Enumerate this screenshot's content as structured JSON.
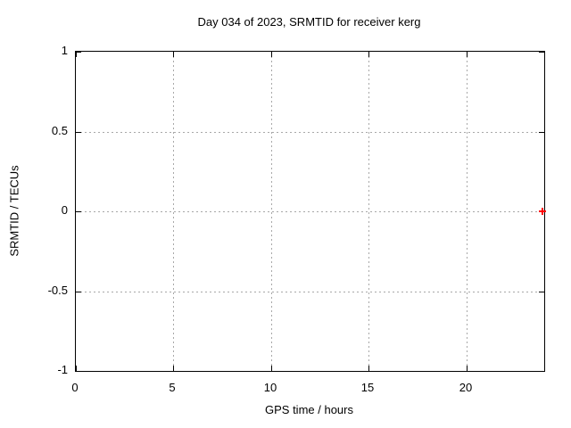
{
  "chart_data": {
    "type": "scatter",
    "title": "Day 034 of 2023, SRMTID for receiver kerg",
    "xlabel": "GPS time / hours",
    "ylabel": "SRMTID / TECUs",
    "xlim": [
      0,
      24
    ],
    "ylim": [
      -1,
      1
    ],
    "xticks": [
      {
        "value": 0,
        "label": "0"
      },
      {
        "value": 5,
        "label": "5"
      },
      {
        "value": 10,
        "label": "10"
      },
      {
        "value": 15,
        "label": "15"
      },
      {
        "value": 20,
        "label": "20"
      }
    ],
    "yticks": [
      {
        "value": -1,
        "label": "-1"
      },
      {
        "value": -0.5,
        "label": "-0.5"
      },
      {
        "value": 0,
        "label": "0"
      },
      {
        "value": 0.5,
        "label": "0.5"
      },
      {
        "value": 1,
        "label": "1"
      }
    ],
    "grid": true,
    "grid_style": "dotted",
    "legend": "none",
    "series": [
      {
        "name": "SRMTID",
        "marker": "plus",
        "color": "#ff0000",
        "points": [
          {
            "x": 23.9,
            "y": 0
          }
        ]
      }
    ],
    "colors": {
      "background": "#ffffff",
      "border": "#000000",
      "grid": "#a8a8a8",
      "text": "#000000"
    }
  }
}
